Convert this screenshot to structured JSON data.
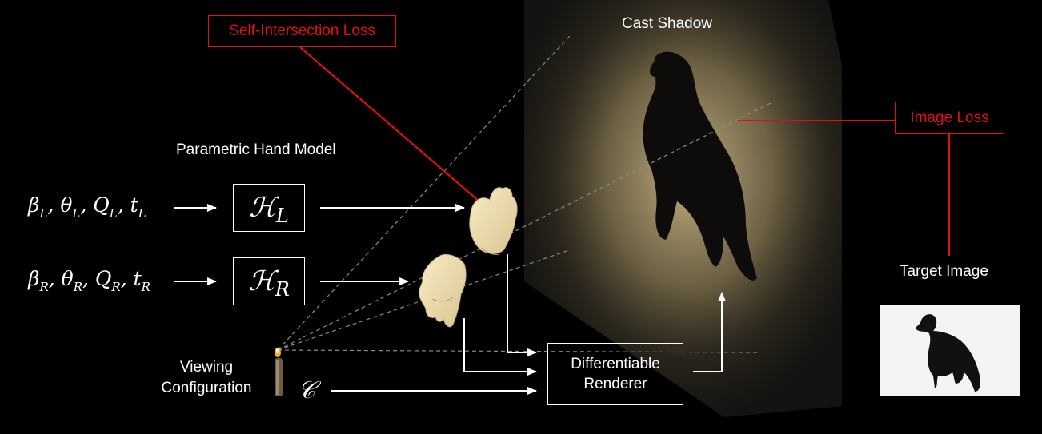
{
  "labels": {
    "cast_shadow": "Cast Shadow",
    "self_intersection_loss": "Self-Intersection Loss",
    "image_loss": "Image Loss",
    "parametric_hand_model": "Parametric Hand Model",
    "target_image": "Target Image",
    "viewing_line1": "Viewing",
    "viewing_line2": "Configuration",
    "renderer_line1": "Differentiable",
    "renderer_line2": "Renderer"
  },
  "inputs": {
    "left": {
      "b": "β",
      "b_sub": "L",
      "t": "θ",
      "t_sub": "L",
      "q": "Q",
      "q_sub": "L",
      "tt": "t",
      "tt_sub": "L"
    },
    "right": {
      "b": "β",
      "b_sub": "R",
      "t": "θ",
      "t_sub": "R",
      "q": "Q",
      "q_sub": "R",
      "tt": "t",
      "tt_sub": "R"
    }
  },
  "models": {
    "left": {
      "symbol": "ℋ",
      "sub": "L"
    },
    "right": {
      "symbol": "ℋ",
      "sub": "R"
    }
  },
  "camera": {
    "symbol": "𝒞"
  },
  "colors": {
    "background": "#000000",
    "loss": "#e01010",
    "shadow_glow": "#cdbb8a",
    "hand": "#efe1b4",
    "arrow": "#ffffff"
  }
}
